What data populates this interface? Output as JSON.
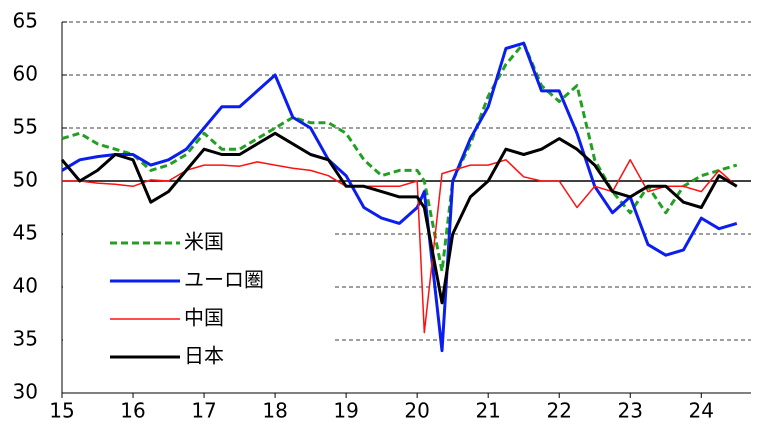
{
  "chart_data": {
    "type": "line",
    "x": [
      15,
      15.25,
      15.5,
      15.75,
      16,
      16.25,
      16.5,
      16.75,
      17,
      17.25,
      17.5,
      17.75,
      18,
      18.25,
      18.5,
      18.75,
      19,
      19.25,
      19.5,
      19.75,
      20,
      20.1,
      20.35,
      20.5,
      20.75,
      21,
      21.25,
      21.5,
      21.75,
      22,
      22.25,
      22.5,
      22.75,
      23,
      23.25,
      23.5,
      23.75,
      24,
      24.25,
      24.5
    ],
    "series": [
      {
        "name": "米国",
        "color": "#22a022",
        "dash": true,
        "width": 3,
        "values": [
          54,
          54.5,
          53.5,
          53,
          52.5,
          51,
          51.5,
          52.5,
          54.5,
          53,
          53,
          54,
          55,
          56,
          55.5,
          55.5,
          54.5,
          52,
          50.5,
          51,
          51,
          50,
          41.5,
          50,
          53.5,
          58,
          61,
          63,
          59,
          57.5,
          59,
          52,
          49,
          47,
          49.5,
          47,
          49.5,
          50.5,
          51,
          51.5
        ]
      },
      {
        "name": "ユーロ圏",
        "color": "#0a1ef0",
        "dash": false,
        "width": 3,
        "values": [
          51,
          52,
          52.3,
          52.5,
          52.5,
          51.5,
          52,
          53,
          55,
          57,
          57,
          58.5,
          60,
          56,
          55,
          52,
          50.5,
          47.5,
          46.5,
          46,
          47.5,
          49,
          34,
          50,
          54,
          57,
          62.5,
          63,
          58.5,
          58.5,
          54.5,
          49.5,
          47,
          48.5,
          44,
          43,
          43.5,
          46.5,
          45.5,
          46
        ]
      },
      {
        "name": "中国",
        "color": "#ff1010",
        "dash": false,
        "width": 1.5,
        "values": [
          50,
          50,
          49.8,
          49.7,
          49.5,
          50.1,
          50,
          51,
          51.5,
          51.5,
          51.4,
          51.8,
          51.5,
          51.2,
          51,
          50.5,
          49.5,
          49.5,
          49.5,
          49.5,
          50,
          35.7,
          50.7,
          51,
          51.5,
          51.5,
          52,
          50.4,
          50,
          50,
          47.5,
          49.5,
          49,
          52,
          49,
          49.5,
          49.5,
          49,
          51,
          49.5
        ]
      },
      {
        "name": "日本",
        "color": "#000000",
        "dash": false,
        "width": 3,
        "values": [
          52,
          50,
          51,
          52.5,
          52,
          48,
          49,
          51,
          53,
          52.5,
          52.5,
          53.5,
          54.5,
          53.5,
          52.5,
          52,
          49.5,
          49.5,
          49,
          48.5,
          48.5,
          47.5,
          38.5,
          45,
          48.5,
          50,
          53,
          52.5,
          53,
          54,
          53,
          51.5,
          49,
          48.5,
          49.5,
          49.5,
          48,
          47.5,
          50.5,
          49.5
        ]
      }
    ],
    "xlim": [
      15,
      24.7
    ],
    "xticks": [
      15,
      16,
      17,
      18,
      19,
      20,
      21,
      22,
      23,
      24
    ],
    "ylim": [
      30,
      65
    ],
    "yticks": [
      30,
      35,
      40,
      45,
      50,
      55,
      60,
      65
    ],
    "grid": true,
    "hline": 50,
    "legend": "lower left"
  }
}
